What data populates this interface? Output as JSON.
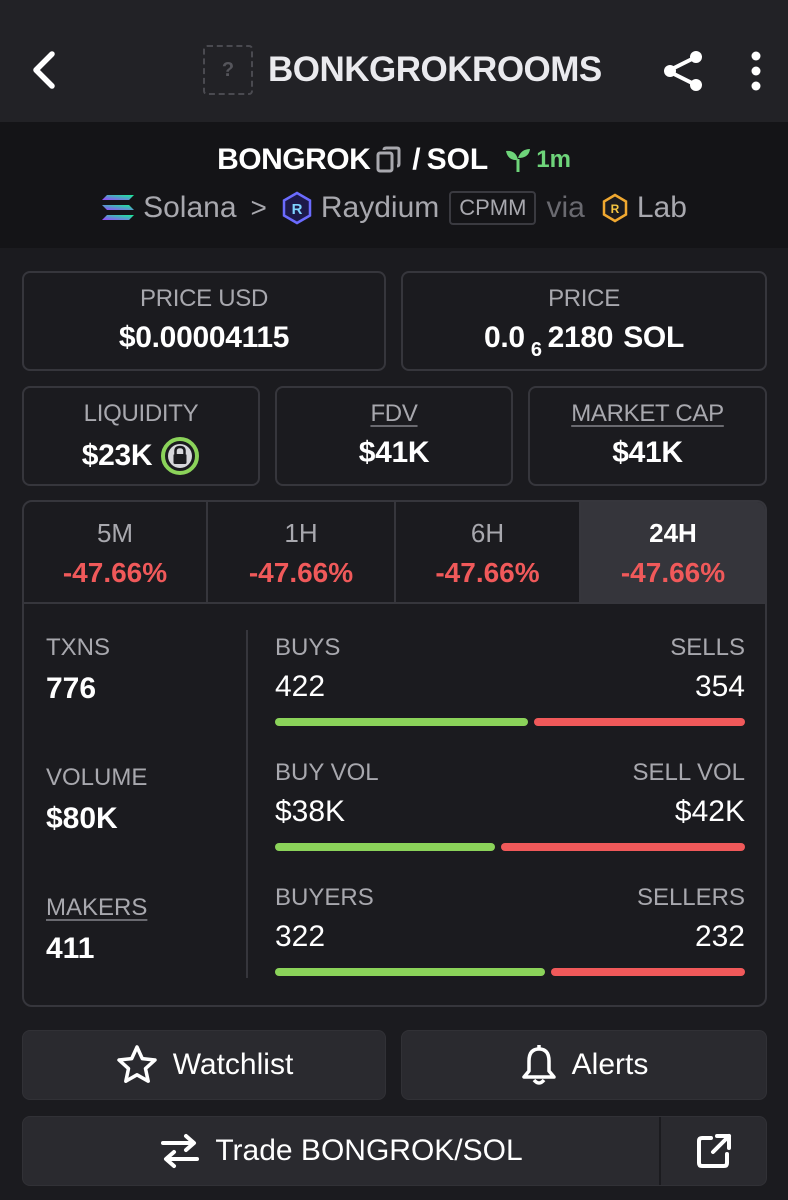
{
  "header": {
    "title": "BONKGROKROOMS",
    "logo_placeholder": "?",
    "icons": {
      "back": "chevron-left-icon",
      "share": "share-icon",
      "more": "more-vertical-icon"
    }
  },
  "pair": {
    "base": "BONGROK",
    "separator": "/",
    "quote": "SOL",
    "age": "1m",
    "chain": "Solana",
    "dex": "Raydium",
    "pool_type": "CPMM",
    "via_label": "via",
    "launchpad": "Lab",
    "chevron": ">"
  },
  "price_usd": {
    "label": "PRICE USD",
    "value": "$0.00004115"
  },
  "price_native": {
    "label": "PRICE",
    "prefix": "0.0",
    "zeros": "6",
    "digits": "2180",
    "unit": "SOL"
  },
  "liquidity": {
    "label": "LIQUIDITY",
    "value": "$23K"
  },
  "fdv": {
    "label": "FDV",
    "value": "$41K"
  },
  "market_cap": {
    "label": "MARKET CAP",
    "value": "$41K"
  },
  "timeframes": [
    {
      "label": "5M",
      "change": "-47.66%"
    },
    {
      "label": "1H",
      "change": "-47.66%"
    },
    {
      "label": "6H",
      "change": "-47.66%"
    },
    {
      "label": "24H",
      "change": "-47.66%"
    }
  ],
  "stats": {
    "txns": {
      "label": "TXNS",
      "value": "776"
    },
    "volume": {
      "label": "VOLUME",
      "value": "$80K"
    },
    "makers": {
      "label": "MAKERS",
      "value": "411"
    },
    "buys": {
      "left_label": "BUYS",
      "right_label": "SELLS",
      "left_value": "422",
      "right_value": "354",
      "ratio": 0.544
    },
    "vol": {
      "left_label": "BUY VOL",
      "right_label": "SELL VOL",
      "left_value": "$38K",
      "right_value": "$42K",
      "ratio": 0.475
    },
    "makers_split": {
      "left_label": "BUYERS",
      "right_label": "SELLERS",
      "left_value": "322",
      "right_value": "232",
      "ratio": 0.581
    }
  },
  "actions": {
    "watchlist": "Watchlist",
    "alerts": "Alerts",
    "trade": "Trade BONGROK/SOL"
  },
  "colors": {
    "positive": "#8bd35a",
    "negative": "#f0595a",
    "age_green": "#6ed47a"
  }
}
